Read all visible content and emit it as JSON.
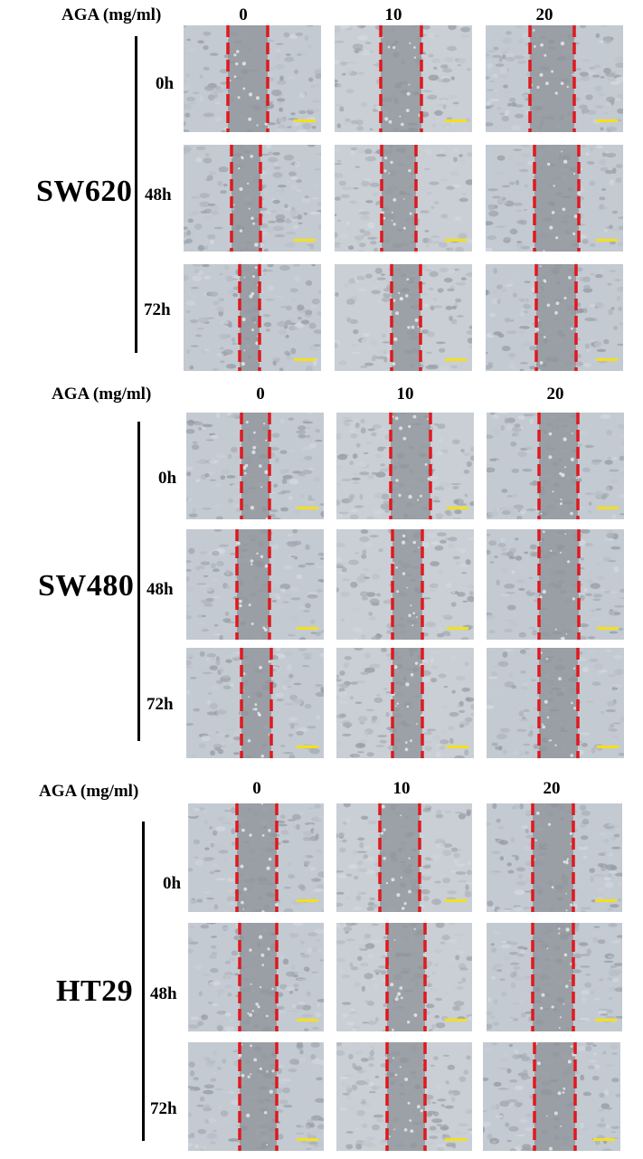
{
  "colors": {
    "boundary": "#e0191f",
    "scalebar": "#f4e01a",
    "line": "#000000"
  },
  "panels": [
    {
      "header": "AGA (mg/ml)",
      "doses": [
        "0",
        "10",
        "20"
      ],
      "cell_line": "SW620",
      "times": [
        "0h",
        "48h",
        "72h"
      ]
    },
    {
      "header": "AGA (mg/ml)",
      "doses": [
        "0",
        "10",
        "20"
      ],
      "cell_line": "SW480",
      "times": [
        "0h",
        "48h",
        "72h"
      ]
    },
    {
      "header": "AGA (mg/ml)",
      "doses": [
        "0",
        "10",
        "20"
      ],
      "cell_line": "HT29",
      "times": [
        "0h",
        "48h",
        "72h"
      ]
    }
  ]
}
